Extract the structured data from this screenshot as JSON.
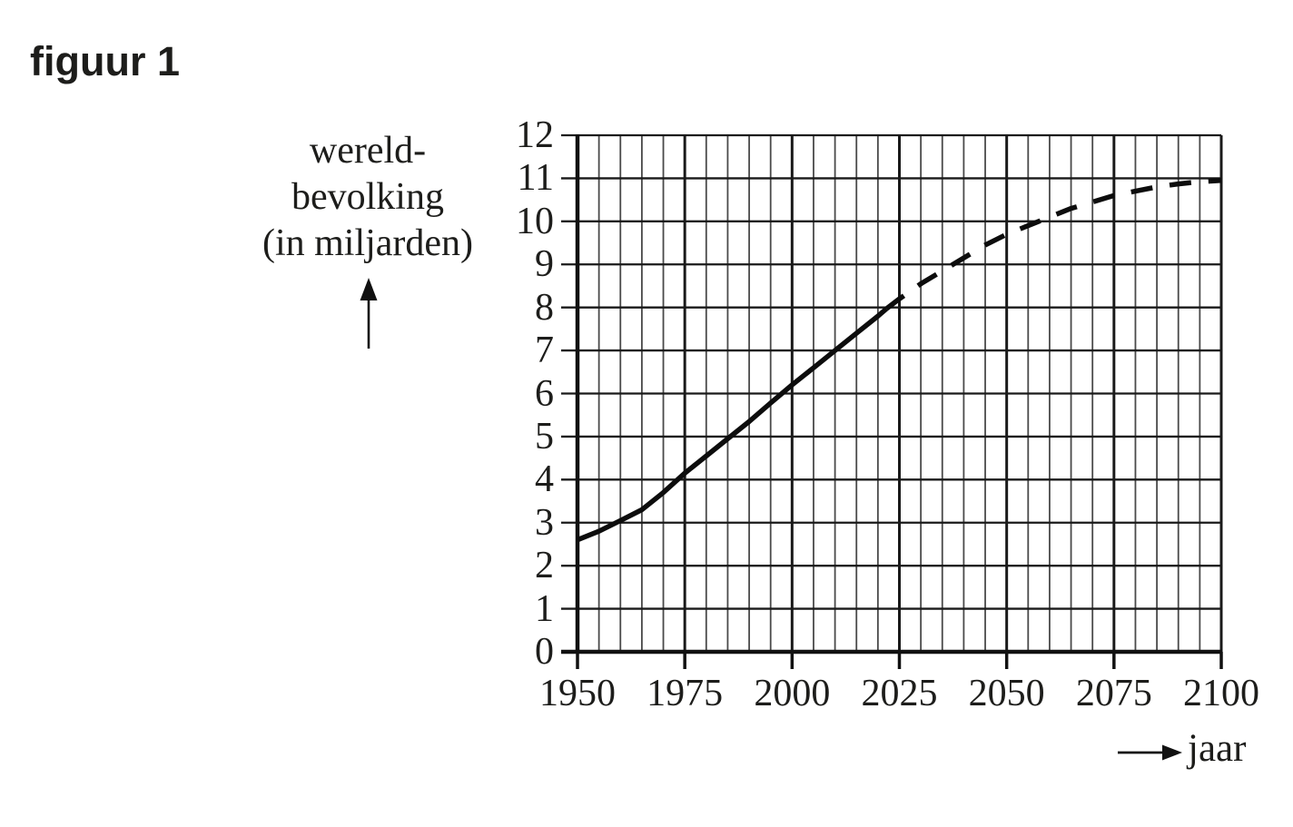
{
  "figure_label": "figuur 1",
  "y_axis": {
    "label_lines": [
      "wereld-",
      "bevolking",
      "(in miljarden)"
    ],
    "ticks": [
      0,
      1,
      2,
      3,
      4,
      5,
      6,
      7,
      8,
      9,
      10,
      11,
      12
    ]
  },
  "x_axis": {
    "label": "jaar",
    "ticks": [
      1950,
      1975,
      2000,
      2025,
      2050,
      2075,
      2100
    ]
  },
  "colors": {
    "text": "#1d1d1b",
    "curve": "#0d0d0d",
    "grid_major": "#1a1a1a",
    "grid_minor": "#4a4a4a",
    "axis": "#111111"
  },
  "chart_data": {
    "type": "line",
    "title": "figuur 1",
    "xlabel": "jaar",
    "ylabel": "wereld-bevolking (in miljarden)",
    "xlim": [
      1950,
      2100
    ],
    "ylim": [
      0,
      12
    ],
    "x_major_step": 25,
    "x_minor_step": 5,
    "y_major_step": 1,
    "grid": true,
    "legend": "none",
    "series": [
      {
        "name": "solid",
        "style": "solid",
        "x": [
          1950,
          1955,
          1960,
          1965,
          1970,
          1975,
          1980,
          1985,
          1990,
          1995,
          2000,
          2005,
          2010,
          2015,
          2020,
          2022
        ],
        "values": [
          2.6,
          2.8,
          3.05,
          3.3,
          3.7,
          4.15,
          4.55,
          4.95,
          5.35,
          5.78,
          6.2,
          6.6,
          7.0,
          7.4,
          7.8,
          7.97
        ]
      },
      {
        "name": "dashed",
        "style": "dashed",
        "x": [
          2022,
          2025,
          2030,
          2035,
          2040,
          2045,
          2050,
          2055,
          2060,
          2065,
          2070,
          2075,
          2080,
          2085,
          2090,
          2095,
          2100
        ],
        "values": [
          7.97,
          8.2,
          8.55,
          8.85,
          9.15,
          9.45,
          9.7,
          9.9,
          10.1,
          10.3,
          10.45,
          10.6,
          10.7,
          10.8,
          10.87,
          10.92,
          10.95
        ]
      }
    ]
  }
}
